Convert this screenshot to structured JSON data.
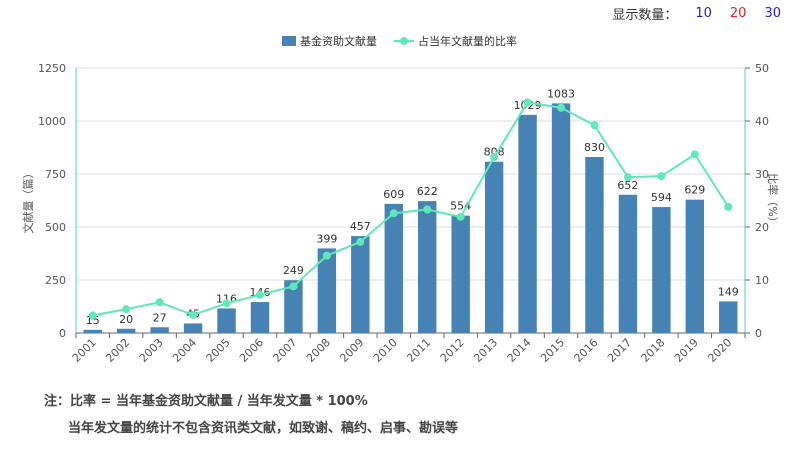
{
  "controls": {
    "label": "显示数量：",
    "options": [
      {
        "label": "10",
        "color": "#1f1fcf"
      },
      {
        "label": "20",
        "color": "#e52222"
      },
      {
        "label": "30",
        "color": "#1f1fcf"
      }
    ]
  },
  "notes": {
    "line1": "注：比率 = 当年基金资助文献量 / 当年发文量 * 100%",
    "line2": "当年发文量的统计不包含资讯类文献，如致谢、稿约、启事、勘误等"
  },
  "chart_data": {
    "type": "bar",
    "categories": [
      "2001",
      "2002",
      "2003",
      "2004",
      "2005",
      "2006",
      "2007",
      "2008",
      "2009",
      "2010",
      "2011",
      "2012",
      "2013",
      "2014",
      "2015",
      "2016",
      "2017",
      "2018",
      "2019",
      "2020"
    ],
    "series": [
      {
        "name": "基金资助文献量",
        "kind": "bar",
        "axis": "left",
        "color": "#4682b4",
        "values": [
          15,
          20,
          27,
          45,
          116,
          146,
          249,
          399,
          457,
          609,
          622,
          554,
          808,
          1029,
          1083,
          830,
          652,
          594,
          629,
          149
        ]
      },
      {
        "name": "占当年文献量的比率",
        "kind": "line",
        "axis": "right",
        "color": "#5fe8b8",
        "values": [
          3.3,
          4.5,
          5.8,
          3.4,
          5.6,
          7.2,
          8.8,
          14.6,
          17.2,
          22.6,
          23.3,
          21.9,
          33.2,
          43.5,
          42.5,
          39.2,
          29.4,
          29.6,
          33.7,
          23.8
        ]
      }
    ],
    "ylabel": "文献量（篇）",
    "y2label": "比率（%）",
    "ylim": [
      0,
      1250
    ],
    "yticks": [
      "0",
      "250",
      "500",
      "750",
      "1000",
      "1250"
    ],
    "y2lim": [
      0,
      50
    ],
    "y2ticks": [
      "0",
      "10",
      "20",
      "30",
      "40",
      "50"
    ],
    "legend_position": "top-center",
    "grid": true
  }
}
